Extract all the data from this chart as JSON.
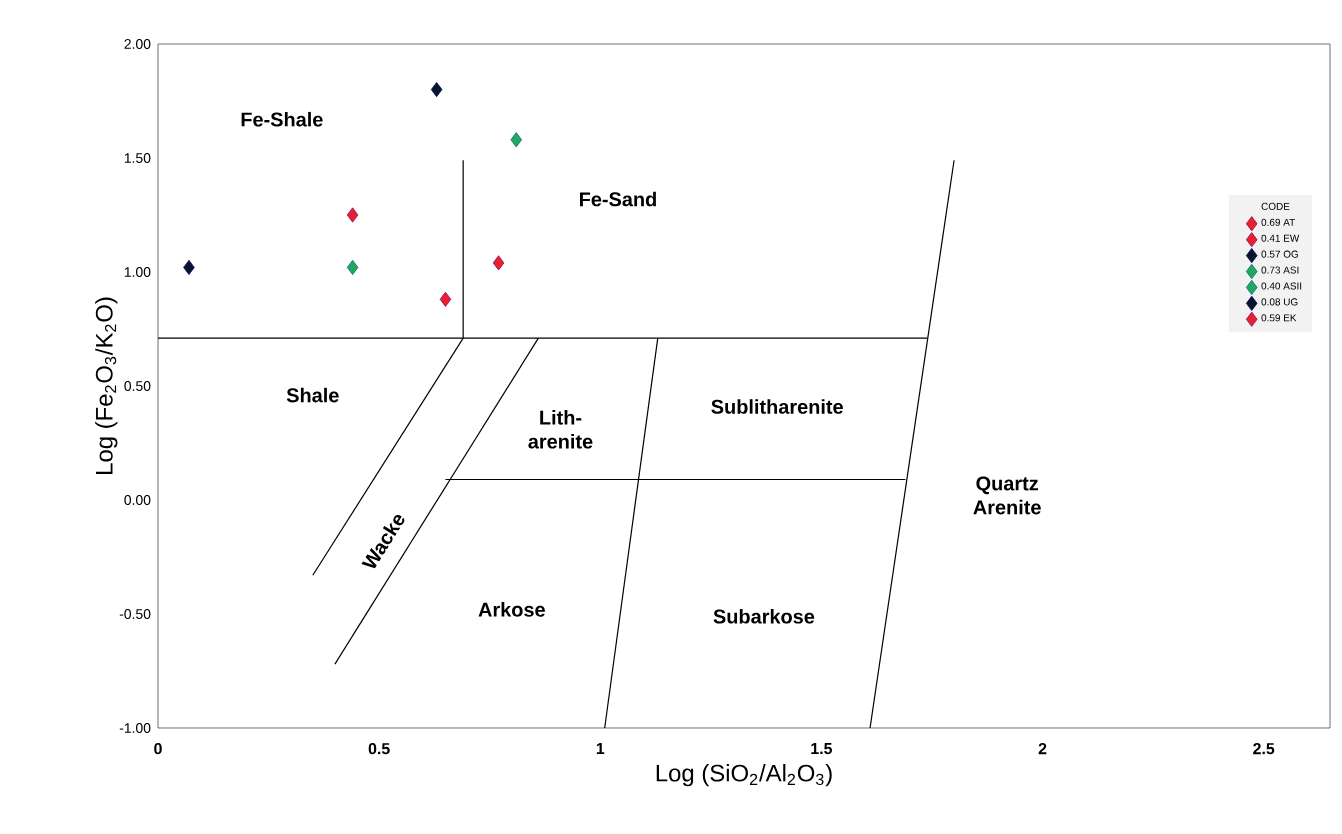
{
  "chart_data": {
    "type": "scatter",
    "xlabel": "Log (SiO$_{2}$/Al$_{2}$O$_{3}$)",
    "ylabel": "Log (Fe$_{2}$O$_{3}$/K$_{2}$O)",
    "legend_title": "CODE",
    "legend": "right",
    "grid": false,
    "xlim": [
      0,
      2.65
    ],
    "ylim": [
      -1,
      2
    ],
    "xticks": [
      0,
      0.5,
      1,
      1.5,
      2,
      2.5
    ],
    "yticks": [
      {
        "value": 2,
        "label": "2.00"
      },
      {
        "value": 1.5,
        "label": "1.50"
      },
      {
        "value": 1,
        "label": "1.00"
      },
      {
        "value": 0.5,
        "label": "0.50"
      },
      {
        "value": 0,
        "label": "0.00"
      },
      {
        "value": -0.5,
        "label": "-0.50"
      },
      {
        "value": -1,
        "label": "-1.00"
      }
    ],
    "series": [
      {
        "name": "0.69 AT",
        "color": "#e8202a",
        "marker": "diamond",
        "x": [
          0.77
        ],
        "values": [
          1.04
        ]
      },
      {
        "name": "0.41 EW",
        "color": "#e8202a",
        "marker": "diamond",
        "x": [
          0.44
        ],
        "values": [
          1.25
        ]
      },
      {
        "name": "0.57 OG",
        "color": "#0a1428",
        "marker": "diamond",
        "x": [
          0.63
        ],
        "values": [
          1.8
        ]
      },
      {
        "name": "0.73 ASI",
        "color": "#1faa5a",
        "marker": "diamond",
        "x": [
          0.81
        ],
        "values": [
          1.58
        ]
      },
      {
        "name": "0.40 ASII",
        "color": "#1faa5a",
        "marker": "diamond",
        "x": [
          0.44
        ],
        "values": [
          1.02
        ]
      },
      {
        "name": "0.08 UG",
        "color": "#0a1428",
        "marker": "diamond",
        "x": [
          0.07
        ],
        "values": [
          1.02
        ]
      },
      {
        "name": "0.59 EK",
        "color": "#e8202a",
        "marker": "diamond",
        "x": [
          0.65
        ],
        "values": [
          0.88
        ]
      },
      {
        "type": "line",
        "color": "#000000",
        "marker": "none",
        "x": [
          0,
          1.74
        ],
        "values": [
          0.71,
          0.71
        ]
      },
      {
        "type": "line",
        "color": "#000000",
        "marker": "none",
        "x": [
          0.69,
          0.69
        ],
        "values": [
          0.71,
          1.49
        ]
      },
      {
        "type": "line",
        "color": "#000000",
        "marker": "none",
        "x": [
          0.69,
          0.35
        ],
        "values": [
          0.71,
          -0.33
        ]
      },
      {
        "type": "line",
        "color": "#000000",
        "marker": "none",
        "x": [
          0.86,
          0.4
        ],
        "values": [
          0.71,
          -0.72
        ]
      },
      {
        "type": "line",
        "color": "#000000",
        "marker": "none",
        "x": [
          1.13,
          1.01
        ],
        "values": [
          0.71,
          -1
        ]
      },
      {
        "type": "line",
        "color": "#000000",
        "marker": "none",
        "x": [
          0.65,
          1.69
        ],
        "values": [
          0.09,
          0.09
        ]
      },
      {
        "type": "line",
        "color": "#000000",
        "marker": "none",
        "x": [
          1.8,
          1.61
        ],
        "values": [
          1.49,
          -1
        ]
      }
    ],
    "annotations": [
      "Fe-Shale",
      "Fe-Sand",
      "Shale",
      "Lith- arenite",
      "Sublitharenite",
      "Wacke",
      "Arkose",
      "Subarkose",
      "Quartz Arenite"
    ]
  }
}
